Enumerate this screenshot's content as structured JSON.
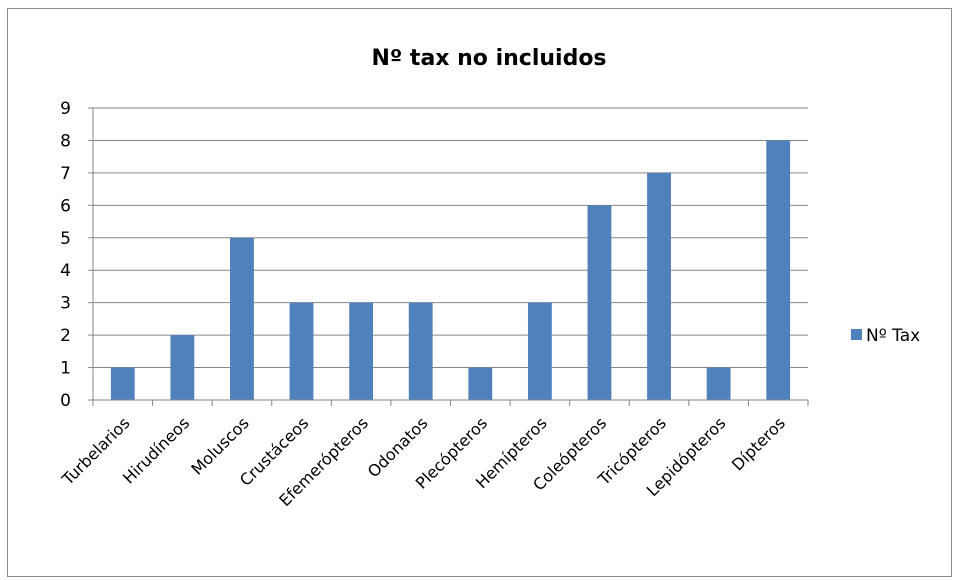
{
  "chart_data": {
    "type": "bar",
    "title": "Nº tax no incluidos",
    "categories": [
      "Turbelarios",
      "Hirudíneos",
      "Moluscos",
      "Crustáceos",
      "Efemerópteros",
      "Odonatos",
      "Plecópteros",
      "Hemípteros",
      "Coleópteros",
      "Tricópteros",
      "Lepidópteros",
      "Dípteros"
    ],
    "series": [
      {
        "name": "Nº Tax",
        "values": [
          1,
          2,
          5,
          3,
          3,
          3,
          1,
          3,
          6,
          7,
          1,
          8
        ],
        "color": "#4f81bd"
      }
    ],
    "yticks": [
      "0",
      "1",
      "2",
      "3",
      "4",
      "5",
      "6",
      "7",
      "8",
      "9"
    ],
    "ylim": [
      0,
      9
    ],
    "grid": true,
    "legend_position": "right",
    "colors": {
      "bar": "#4f81bd",
      "grid": "#868686",
      "axis": "#868686"
    }
  }
}
